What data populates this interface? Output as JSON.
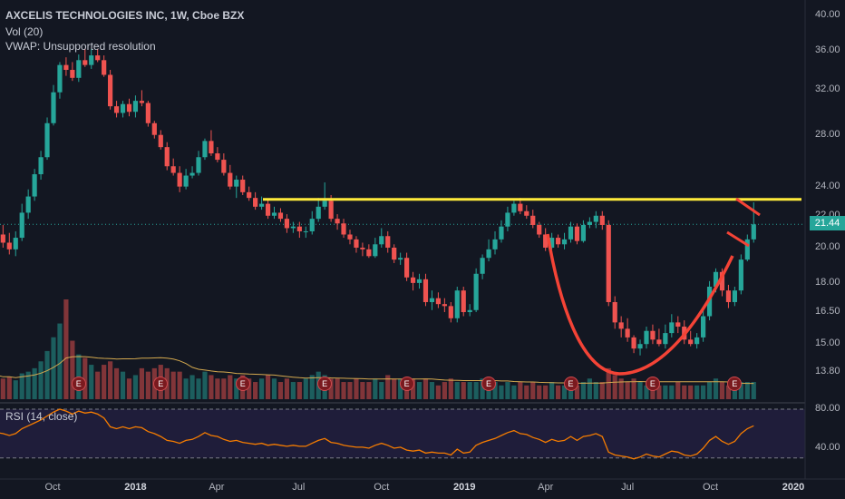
{
  "legend": {
    "symbol_line": "AXCELIS TECHNOLOGIES INC, 1W, Cboe BZX",
    "volume_line": "Vol (20)",
    "vwap_line": "VWAP: Unsupported resolution"
  },
  "rsi_legend": "RSI (14, close)",
  "colors": {
    "up": "#26a69a",
    "down": "#ef5350",
    "resistance": "#ffeb3b",
    "annotation": "#f44336",
    "rsi_line": "#f57c00",
    "current_price": "#26a69a"
  },
  "price_axis": {
    "ticks": [
      "40.00",
      "36.00",
      "32.00",
      "28.00",
      "24.00",
      "22.00",
      "20.00",
      "18.00",
      "16.50",
      "15.00",
      "13.80"
    ],
    "current_price_label": "21.44"
  },
  "rsi_axis": {
    "ticks": [
      "80.00",
      "40.00"
    ]
  },
  "time_axis": {
    "ticks": [
      "Oct",
      "2018",
      "Apr",
      "Jul",
      "Oct",
      "2019",
      "Apr",
      "Jul",
      "Oct",
      "2020"
    ]
  },
  "earnings_marker_label": "E",
  "chart_data": {
    "type": "candlestick",
    "title": "AXCELIS TECHNOLOGIES INC, 1W, Cboe BZX",
    "interval": "1W",
    "x": [
      "2017-07-31",
      "2017-08-07",
      "2017-08-14",
      "2017-08-21",
      "2017-08-28",
      "2017-09-04",
      "2017-09-11",
      "2017-09-18",
      "2017-09-25",
      "2017-10-02",
      "2017-10-09",
      "2017-10-16",
      "2017-10-23",
      "2017-10-30",
      "2017-11-06",
      "2017-11-13",
      "2017-11-20",
      "2017-11-27",
      "2017-12-04",
      "2017-12-11",
      "2017-12-18",
      "2017-12-25",
      "2018-01-01",
      "2018-01-08",
      "2018-01-15",
      "2018-01-22",
      "2018-01-29",
      "2018-02-05",
      "2018-02-12",
      "2018-02-19",
      "2018-02-26",
      "2018-03-05",
      "2018-03-12",
      "2018-03-19",
      "2018-03-26",
      "2018-04-02",
      "2018-04-09",
      "2018-04-16",
      "2018-04-23",
      "2018-04-30",
      "2018-05-07",
      "2018-05-14",
      "2018-05-21",
      "2018-05-28",
      "2018-06-04",
      "2018-06-11",
      "2018-06-18",
      "2018-06-25",
      "2018-07-02",
      "2018-07-09",
      "2018-07-16",
      "2018-07-23",
      "2018-07-30",
      "2018-08-06",
      "2018-08-13",
      "2018-08-20",
      "2018-08-27",
      "2018-09-03",
      "2018-09-10",
      "2018-09-17",
      "2018-09-24",
      "2018-10-01",
      "2018-10-08",
      "2018-10-15",
      "2018-10-22",
      "2018-10-29",
      "2018-11-05",
      "2018-11-12",
      "2018-11-19",
      "2018-11-26",
      "2018-12-03",
      "2018-12-10",
      "2018-12-17",
      "2018-12-24",
      "2018-12-31",
      "2019-01-07",
      "2019-01-14",
      "2019-01-21",
      "2019-01-28",
      "2019-02-04",
      "2019-02-11",
      "2019-02-18",
      "2019-02-25",
      "2019-03-04",
      "2019-03-11",
      "2019-03-18",
      "2019-03-25",
      "2019-04-01",
      "2019-04-08",
      "2019-04-15",
      "2019-04-22",
      "2019-04-29",
      "2019-05-06",
      "2019-05-13",
      "2019-05-20",
      "2019-05-27",
      "2019-06-03",
      "2019-06-10",
      "2019-06-17",
      "2019-06-24",
      "2019-07-01",
      "2019-07-08",
      "2019-07-15",
      "2019-07-22",
      "2019-07-29",
      "2019-08-05",
      "2019-08-12",
      "2019-08-19",
      "2019-08-26",
      "2019-09-02",
      "2019-09-09",
      "2019-09-16",
      "2019-09-23",
      "2019-09-30",
      "2019-10-07",
      "2019-10-14",
      "2019-10-21",
      "2019-10-28",
      "2019-11-04",
      "2019-11-11",
      "2019-11-18"
    ],
    "open": [
      20.5,
      20.8,
      20.3,
      19.9,
      20.6,
      22.2,
      23.3,
      24.9,
      26.2,
      29.0,
      31.8,
      34.5,
      34.0,
      33.2,
      35.0,
      34.5,
      35.5,
      35.0,
      33.5,
      30.5,
      29.9,
      30.7,
      30.0,
      31.0,
      30.8,
      29.0,
      28.0,
      27.0,
      25.5,
      25.0,
      24.0,
      24.8,
      25.0,
      26.2,
      27.5,
      26.5,
      26.0,
      25.0,
      24.0,
      24.5,
      23.6,
      23.2,
      22.6,
      22.8,
      22.0,
      22.2,
      21.8,
      21.2,
      21.3,
      21.0,
      21.0,
      21.8,
      22.6,
      23.0,
      21.8,
      21.5,
      20.8,
      20.5,
      20.0,
      19.9,
      19.5,
      20.2,
      20.7,
      20.0,
      19.3,
      19.4,
      18.3,
      18.0,
      18.2,
      17.0,
      17.2,
      16.9,
      16.8,
      16.2,
      17.6,
      16.5,
      16.6,
      18.5,
      19.4,
      19.9,
      20.5,
      21.3,
      22.2,
      22.8,
      22.3,
      22.0,
      21.4,
      20.8,
      20.0,
      20.6,
      20.2,
      20.5,
      21.3,
      20.4,
      21.4,
      21.6,
      22.0,
      21.4,
      17.0,
      16.0,
      15.7,
      15.3,
      14.8,
      15.0,
      15.6,
      15.2,
      15.0,
      15.5,
      16.0,
      15.8,
      15.2,
      15.0,
      15.3,
      16.3,
      17.8,
      18.6,
      17.6,
      17.0,
      17.6,
      19.3,
      20.5
    ],
    "high": [
      21.2,
      21.4,
      20.9,
      21.0,
      22.8,
      23.8,
      25.3,
      26.7,
      29.5,
      32.5,
      34.8,
      35.3,
      34.8,
      35.6,
      36.2,
      36.2,
      36.2,
      35.5,
      34.0,
      31.0,
      31.0,
      31.2,
      31.5,
      32.0,
      31.0,
      29.2,
      28.4,
      27.4,
      26.1,
      25.5,
      25.3,
      25.5,
      26.7,
      27.7,
      28.4,
      27.0,
      26.5,
      25.6,
      24.8,
      24.8,
      24.0,
      23.6,
      23.3,
      23.1,
      22.6,
      22.5,
      22.1,
      21.6,
      21.6,
      21.3,
      22.3,
      23.2,
      24.3,
      23.4,
      22.1,
      21.8,
      21.1,
      20.7,
      20.3,
      20.2,
      20.6,
      21.2,
      21.0,
      20.2,
      19.7,
      19.7,
      18.6,
      18.5,
      18.5,
      17.6,
      17.5,
      17.2,
      17.0,
      17.8,
      17.8,
      16.9,
      18.8,
      19.6,
      20.5,
      21.0,
      21.7,
      22.6,
      23.0,
      23.2,
      22.7,
      22.4,
      21.6,
      21.2,
      20.9,
      20.8,
      20.9,
      21.6,
      21.5,
      21.7,
      21.9,
      22.3,
      22.3,
      21.7,
      17.3,
      16.3,
      16.2,
      15.4,
      15.2,
      15.8,
      15.9,
      15.7,
      15.9,
      16.4,
      16.3,
      16.1,
      15.6,
      15.5,
      16.6,
      18.1,
      18.8,
      18.8,
      17.9,
      17.8,
      19.6,
      20.8,
      22.9
    ],
    "low": [
      20.1,
      20.0,
      19.6,
      19.5,
      20.4,
      21.8,
      23.0,
      24.5,
      26.0,
      28.8,
      31.2,
      33.4,
      32.9,
      32.8,
      34.3,
      34.1,
      34.8,
      33.3,
      30.2,
      29.5,
      29.5,
      29.6,
      29.5,
      30.5,
      28.7,
      27.7,
      26.8,
      25.2,
      24.8,
      23.6,
      23.8,
      24.6,
      24.8,
      26.0,
      26.3,
      25.8,
      24.8,
      23.8,
      23.2,
      23.4,
      23.0,
      22.4,
      22.4,
      21.8,
      21.8,
      21.6,
      20.9,
      20.9,
      20.6,
      20.6,
      20.8,
      21.6,
      22.4,
      21.6,
      21.1,
      20.6,
      20.2,
      19.7,
      19.5,
      19.4,
      19.4,
      20.0,
      19.7,
      19.1,
      19.0,
      18.1,
      17.6,
      17.7,
      16.8,
      16.6,
      16.7,
      16.5,
      16.0,
      16.0,
      16.3,
      16.3,
      16.5,
      18.2,
      19.2,
      19.6,
      20.3,
      21.0,
      22.0,
      22.1,
      21.8,
      21.2,
      20.6,
      19.8,
      19.9,
      20.0,
      19.9,
      20.3,
      20.2,
      20.3,
      21.2,
      21.2,
      21.1,
      16.8,
      15.7,
      15.3,
      15.1,
      14.6,
      14.5,
      14.8,
      15.0,
      14.9,
      14.8,
      15.3,
      15.5,
      15.0,
      14.9,
      14.8,
      15.1,
      16.1,
      17.5,
      17.3,
      16.7,
      16.8,
      17.4,
      19.2,
      20.3
    ],
    "close": [
      20.8,
      20.3,
      19.9,
      20.6,
      22.2,
      23.3,
      24.9,
      26.2,
      29.0,
      31.8,
      34.5,
      34.0,
      33.2,
      35.0,
      34.5,
      35.5,
      35.0,
      33.5,
      30.5,
      29.9,
      30.7,
      30.0,
      31.0,
      30.8,
      29.0,
      28.0,
      27.0,
      25.5,
      25.0,
      24.0,
      24.8,
      25.0,
      26.2,
      27.5,
      26.5,
      26.0,
      25.0,
      24.0,
      24.5,
      23.6,
      23.2,
      22.6,
      22.8,
      22.0,
      22.2,
      21.8,
      21.2,
      21.3,
      21.0,
      21.0,
      21.8,
      22.6,
      23.0,
      21.8,
      21.5,
      20.8,
      20.5,
      20.0,
      19.9,
      19.5,
      20.2,
      20.7,
      20.0,
      19.3,
      19.4,
      18.3,
      18.0,
      18.2,
      17.0,
      17.2,
      16.9,
      16.8,
      16.2,
      17.6,
      16.5,
      16.6,
      18.5,
      19.4,
      19.9,
      20.5,
      21.3,
      22.2,
      22.8,
      22.3,
      22.0,
      21.4,
      20.8,
      20.0,
      20.6,
      20.2,
      20.5,
      21.3,
      20.4,
      21.4,
      21.6,
      22.0,
      21.4,
      17.0,
      16.0,
      15.7,
      15.3,
      14.8,
      15.0,
      15.6,
      15.2,
      15.0,
      15.5,
      16.0,
      15.8,
      15.2,
      15.0,
      15.3,
      16.3,
      17.8,
      18.6,
      17.6,
      17.0,
      17.6,
      19.3,
      20.5,
      21.44
    ],
    "volume": [
      0.7,
      0.6,
      0.65,
      0.55,
      0.75,
      0.8,
      0.9,
      1.1,
      1.4,
      1.8,
      2.2,
      2.9,
      1.7,
      1.3,
      1.2,
      1.0,
      0.8,
      1.0,
      1.1,
      0.9,
      0.8,
      0.6,
      0.7,
      0.9,
      0.8,
      0.9,
      1.0,
      0.9,
      0.8,
      0.8,
      0.6,
      0.7,
      0.6,
      0.8,
      0.7,
      0.6,
      0.6,
      0.7,
      0.6,
      0.7,
      0.6,
      0.5,
      0.6,
      0.7,
      0.6,
      0.5,
      0.6,
      0.5,
      0.5,
      0.6,
      0.7,
      0.8,
      0.7,
      0.6,
      0.6,
      0.5,
      0.5,
      0.6,
      0.5,
      0.5,
      0.6,
      0.5,
      0.7,
      0.6,
      0.6,
      0.5,
      0.6,
      0.5,
      0.6,
      0.5,
      0.4,
      0.5,
      0.6,
      0.5,
      0.5,
      0.5,
      0.5,
      0.6,
      0.5,
      0.5,
      0.4,
      0.5,
      0.4,
      0.5,
      0.4,
      0.5,
      0.4,
      0.4,
      0.5,
      0.4,
      0.4,
      0.5,
      0.4,
      0.5,
      0.6,
      0.5,
      0.5,
      0.9,
      0.7,
      0.6,
      0.5,
      0.6,
      0.5,
      0.4,
      0.5,
      0.4,
      0.4,
      0.4,
      0.5,
      0.4,
      0.4,
      0.4,
      0.4,
      0.5,
      0.6,
      0.5,
      0.4,
      0.4,
      0.5,
      0.5,
      0.5
    ],
    "rsi": [
      56,
      55,
      53,
      55,
      60,
      63,
      66,
      69,
      73,
      77,
      80,
      78,
      75,
      78,
      76,
      77,
      75,
      71,
      62,
      60,
      62,
      60,
      62,
      61,
      57,
      55,
      52,
      48,
      47,
      45,
      48,
      49,
      52,
      56,
      53,
      52,
      49,
      47,
      48,
      46,
      45,
      44,
      45,
      43,
      44,
      43,
      42,
      43,
      42,
      42,
      45,
      48,
      50,
      46,
      45,
      43,
      42,
      41,
      41,
      40,
      43,
      45,
      43,
      40,
      41,
      38,
      37,
      38,
      35,
      36,
      35,
      35,
      33,
      39,
      35,
      36,
      43,
      46,
      48,
      50,
      53,
      56,
      58,
      55,
      54,
      51,
      49,
      46,
      49,
      47,
      48,
      52,
      48,
      52,
      53,
      55,
      52,
      36,
      33,
      32,
      31,
      29,
      31,
      34,
      32,
      31,
      34,
      37,
      36,
      33,
      32,
      34,
      40,
      48,
      52,
      47,
      44,
      47,
      55,
      60,
      63
    ],
    "earnings_dates": [
      "2017-10-30",
      "2018-01-29",
      "2018-04-30",
      "2018-07-30",
      "2018-10-29",
      "2019-01-28",
      "2019-04-29",
      "2019-07-29",
      "2019-10-28"
    ],
    "resistance_level": 23.1,
    "current_price": 21.44,
    "ylim": [
      12.8,
      40.6
    ],
    "rsi_ylim": [
      20,
      90
    ]
  }
}
